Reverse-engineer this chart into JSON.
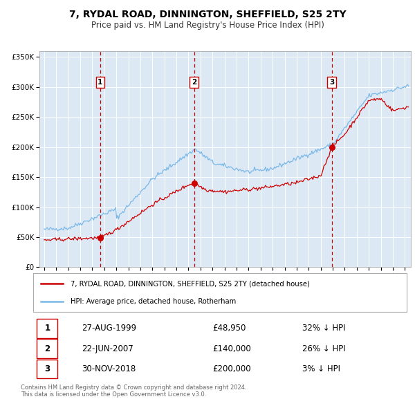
{
  "title": "7, RYDAL ROAD, DINNINGTON, SHEFFIELD, S25 2TY",
  "subtitle": "Price paid vs. HM Land Registry's House Price Index (HPI)",
  "bg_color": "#dce9f5",
  "transactions": [
    {
      "date": 1999.65,
      "price": 48950,
      "label": "1"
    },
    {
      "date": 2007.47,
      "price": 140000,
      "label": "2"
    },
    {
      "date": 2018.92,
      "price": 200000,
      "label": "3"
    }
  ],
  "transaction_info": [
    {
      "num": "1",
      "date": "27-AUG-1999",
      "price": "£48,950",
      "note": "32% ↓ HPI"
    },
    {
      "num": "2",
      "date": "22-JUN-2007",
      "price": "£140,000",
      "note": "26% ↓ HPI"
    },
    {
      "num": "3",
      "date": "30-NOV-2018",
      "price": "£200,000",
      "note": "3% ↓ HPI"
    }
  ],
  "legend_entries": [
    "7, RYDAL ROAD, DINNINGTON, SHEFFIELD, S25 2TY (detached house)",
    "HPI: Average price, detached house, Rotherham"
  ],
  "footer": "Contains HM Land Registry data © Crown copyright and database right 2024.\nThis data is licensed under the Open Government Licence v3.0.",
  "ylim": [
    0,
    360000
  ],
  "yticks": [
    0,
    50000,
    100000,
    150000,
    200000,
    250000,
    300000,
    350000
  ],
  "hpi_color": "#7ab8e8",
  "price_color": "#cc0000",
  "dashed_color": "#cc0000",
  "marker_color": "#cc0000",
  "xmin": 1994.6,
  "xmax": 2025.5
}
